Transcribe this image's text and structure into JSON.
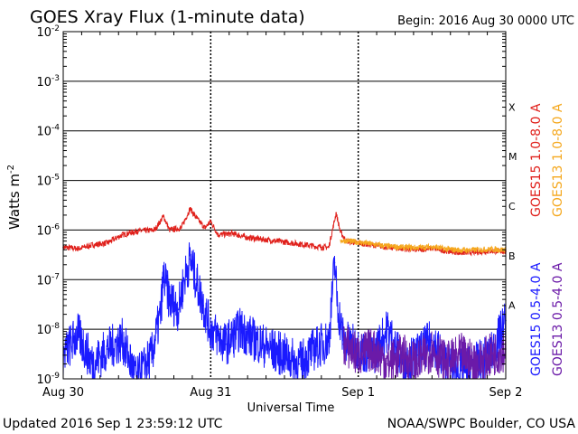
{
  "chart_data": {
    "type": "line",
    "title": "GOES Xray Flux (1-minute data)",
    "begin_label": "Begin:  2016 Aug 30 0000 UTC",
    "xlabel": "Universal Time",
    "ylabel": "Watts m",
    "ylabel_sup": "-2",
    "y_scale": "log",
    "ylim": [
      1e-09,
      0.01
    ],
    "y_ticks": [
      {
        "base": "10",
        "exp": "-9",
        "value": 1e-09
      },
      {
        "base": "10",
        "exp": "-8",
        "value": 1e-08
      },
      {
        "base": "10",
        "exp": "-7",
        "value": 1e-07
      },
      {
        "base": "10",
        "exp": "-6",
        "value": 1e-06
      },
      {
        "base": "10",
        "exp": "-5",
        "value": 1e-05
      },
      {
        "base": "10",
        "exp": "-4",
        "value": 0.0001
      },
      {
        "base": "10",
        "exp": "-3",
        "value": 0.001
      },
      {
        "base": "10",
        "exp": "-2",
        "value": 0.01
      }
    ],
    "x_units": "days since 2016-08-30 00:00 UTC",
    "xlim": [
      0,
      3
    ],
    "x_ticks": [
      {
        "label": "Aug 30",
        "value": 0
      },
      {
        "label": "Aug 31",
        "value": 1
      },
      {
        "label": "Sep 1",
        "value": 2
      },
      {
        "label": "Sep 2",
        "value": 3
      }
    ],
    "flare_classes": [
      {
        "label": "X",
        "value": 0.0001
      },
      {
        "label": "M",
        "value": 1e-05
      },
      {
        "label": "C",
        "value": 1e-06
      },
      {
        "label": "B",
        "value": 1e-07
      },
      {
        "label": "A",
        "value": 1e-08
      }
    ],
    "grid": true,
    "series": [
      {
        "name": "GOES15 1.0-8.0 A",
        "color": "#e0201b",
        "band": "long",
        "x": [
          0,
          0.1,
          0.2,
          0.3,
          0.4,
          0.5,
          0.62,
          0.68,
          0.72,
          0.8,
          0.86,
          0.9,
          0.96,
          1.0,
          1.05,
          1.15,
          1.25,
          1.35,
          1.45,
          1.55,
          1.65,
          1.75,
          1.8,
          1.85,
          1.88,
          1.92,
          2.0,
          2.1,
          2.2,
          2.3,
          2.4,
          2.5,
          2.6,
          2.7,
          2.8,
          2.9,
          3.0
        ],
        "y": [
          4.5e-07,
          4.2e-07,
          5e-07,
          5.5e-07,
          8e-07,
          9.5e-07,
          1e-06,
          1.9e-06,
          1e-06,
          1.1e-06,
          2.7e-06,
          1.8e-06,
          1.1e-06,
          1.5e-06,
          8e-07,
          8.5e-07,
          7e-07,
          6.5e-07,
          6e-07,
          5.5e-07,
          5e-07,
          4.5e-07,
          4.5e-07,
          2.2e-06,
          9e-07,
          6e-07,
          5.5e-07,
          5e-07,
          4.5e-07,
          4.2e-07,
          4e-07,
          4.3e-07,
          3.8e-07,
          3.5e-07,
          3.6e-07,
          3.8e-07,
          3.7e-07
        ]
      },
      {
        "name": "GOES13 1.0-8.0 A",
        "color": "#f5a81e",
        "band": "long",
        "x": [
          1.88,
          2.0,
          2.1,
          2.2,
          2.3,
          2.4,
          2.5,
          2.6,
          2.7,
          2.8,
          2.9,
          3.0
        ],
        "y": [
          6.2e-07,
          5.7e-07,
          5.2e-07,
          4.7e-07,
          4.5e-07,
          4.4e-07,
          4.6e-07,
          4.1e-07,
          3.9e-07,
          4e-07,
          4.1e-07,
          4e-07
        ]
      },
      {
        "name": "GOES15 0.5-4.0 A",
        "color": "#1a1aff",
        "band": "short",
        "x": [
          0,
          0.1,
          0.2,
          0.3,
          0.4,
          0.5,
          0.6,
          0.66,
          0.68,
          0.72,
          0.78,
          0.82,
          0.86,
          0.9,
          0.95,
          1.0,
          1.1,
          1.2,
          1.3,
          1.4,
          1.5,
          1.6,
          1.7,
          1.8,
          1.84,
          1.86,
          1.9,
          2.0,
          2.1,
          2.2,
          2.3,
          2.4,
          2.5,
          2.6,
          2.7,
          2.8,
          2.9,
          3.0
        ],
        "y": [
          3e-09,
          8e-09,
          2e-09,
          4e-09,
          6e-09,
          1e-09,
          3e-09,
          2e-08,
          1.2e-07,
          4e-08,
          2.5e-08,
          1e-07,
          2.6e-07,
          1e-07,
          3e-08,
          1e-08,
          5e-09,
          1e-08,
          6e-09,
          4e-09,
          3e-09,
          2e-09,
          4e-09,
          6e-09,
          2.2e-07,
          3e-08,
          6e-09,
          4e-09,
          3e-09,
          1e-08,
          2e-09,
          3e-09,
          6e-09,
          2e-09,
          1.5e-09,
          2e-09,
          3e-09,
          1.5e-08
        ]
      },
      {
        "name": "GOES13 0.5-4.0 A",
        "color": "#6b1aa8",
        "band": "short",
        "x": [
          1.9,
          2.0,
          2.1,
          2.2,
          2.3,
          2.4,
          2.5,
          2.6,
          2.7,
          2.8,
          2.9,
          3.0
        ],
        "y": [
          5e-09,
          3e-09,
          4e-09,
          2e-09,
          3e-09,
          2e-09,
          4e-09,
          2e-09,
          3e-09,
          2e-09,
          3e-09,
          4e-09
        ]
      }
    ]
  },
  "footer": {
    "updated": "Updated 2016 Sep  1 23:59:12 UTC",
    "credit": "NOAA/SWPC Boulder, CO USA"
  }
}
